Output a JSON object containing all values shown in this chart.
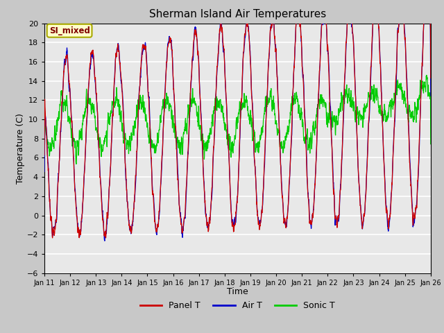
{
  "title": "Sherman Island Air Temperatures",
  "xlabel": "Time",
  "ylabel": "Temperature (C)",
  "ylim": [
    -6,
    20
  ],
  "yticks": [
    -6,
    -4,
    -2,
    0,
    2,
    4,
    6,
    8,
    10,
    12,
    14,
    16,
    18,
    20
  ],
  "xtick_labels": [
    "Jan 11",
    "Jan 12",
    "Jan 13",
    "Jan 14",
    "Jan 15",
    "Jan 16",
    "Jan 17",
    "Jan 18",
    "Jan 19",
    "Jan 20",
    "Jan 21",
    "Jan 22",
    "Jan 23",
    "Jan 24",
    "Jan 25",
    "Jan 26"
  ],
  "panel_color": "#cc0000",
  "air_color": "#0000cc",
  "sonic_color": "#00cc00",
  "fig_bg": "#c8c8c8",
  "plot_bg": "#e8e8e8",
  "legend_label": "SI_mixed",
  "legend_bg": "#ffffcc",
  "legend_text_color": "#800000",
  "legend_edge_color": "#aaaa00",
  "grid_color": "#ffffff",
  "n_days": 15,
  "pts_per_day": 144
}
